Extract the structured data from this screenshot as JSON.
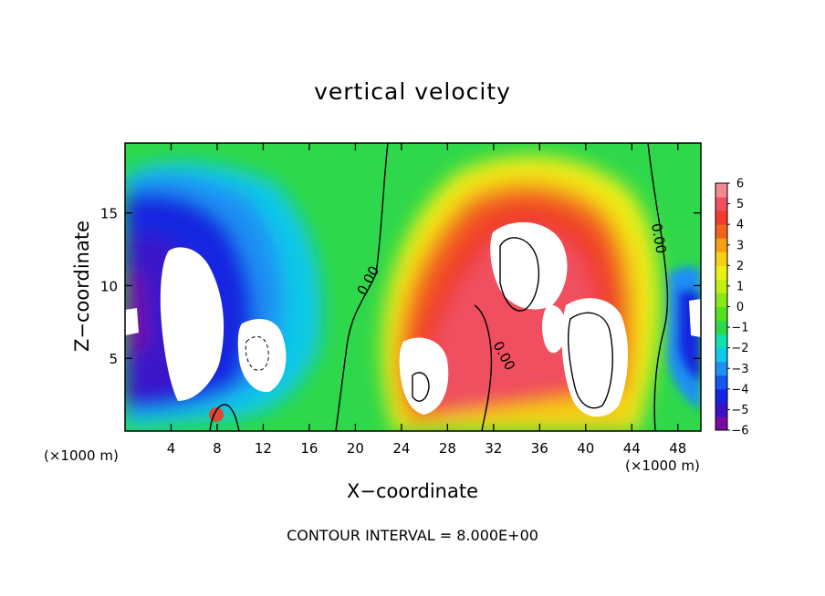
{
  "chart_data": {
    "type": "heatmap",
    "title": "vertical velocity",
    "xlabel": "X−coordinate",
    "ylabel": "Z−coordinate",
    "x_unit_label": "(×1000 m)",
    "footer": "CONTOUR INTERVAL = 8.000E+00",
    "xlim": [
      0,
      50
    ],
    "ylim": [
      0,
      19.8
    ],
    "x_ticks": [
      4,
      8,
      12,
      16,
      20,
      24,
      28,
      32,
      36,
      40,
      44,
      48
    ],
    "y_ticks": [
      5,
      10,
      15
    ],
    "contour_labels": [
      "0.00",
      "0.00",
      "0.00"
    ],
    "colorbar": {
      "range": [
        -6,
        6
      ],
      "tick_labels": [
        "6",
        "5",
        "4",
        "3",
        "2",
        "1",
        "0",
        "−1",
        "−2",
        "−3",
        "−4",
        "−5",
        "−6"
      ],
      "colors": [
        "#7a0ca6",
        "#3a12c8",
        "#1426e0",
        "#1456f0",
        "#1e90f4",
        "#10c8e8",
        "#10e0b0",
        "#2ed84a",
        "#52e11e",
        "#88e814",
        "#c2ee14",
        "#eef014",
        "#f4d016",
        "#f6a015",
        "#f2641e",
        "#f03c2a",
        "#f05060",
        "#f28a92"
      ]
    }
  }
}
